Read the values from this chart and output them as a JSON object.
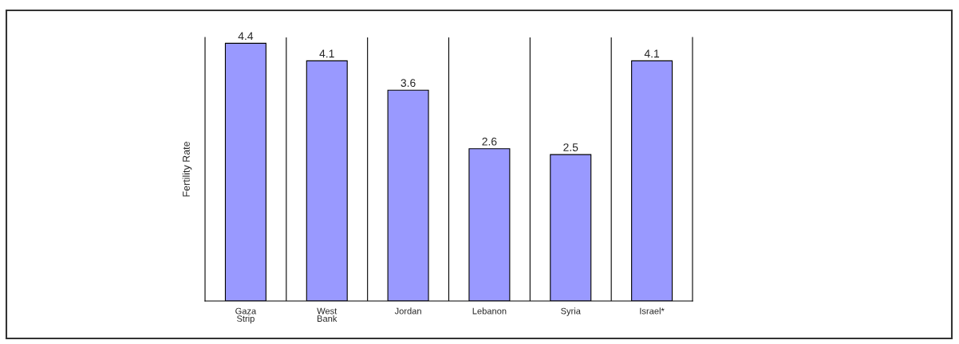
{
  "chart_data": {
    "type": "bar",
    "ylabel": "Fertility Rate",
    "categories": [
      "Gaza\nStrip",
      "West\nBank",
      "Jordan",
      "Lebanon",
      "Syria",
      "Israel*"
    ],
    "values": [
      4.4,
      4.1,
      3.6,
      2.6,
      2.5,
      4.1
    ],
    "color": "#9999ff",
    "ylim": [
      0,
      4.5
    ],
    "data_labels": true,
    "grid": "x",
    "tick_labels": "x"
  }
}
